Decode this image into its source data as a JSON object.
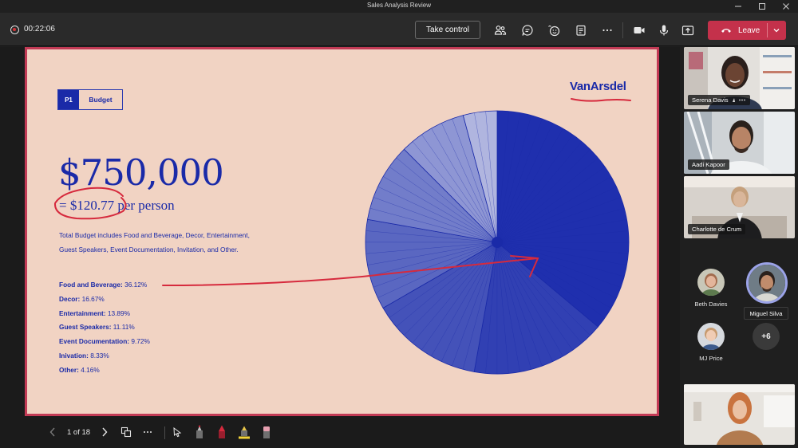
{
  "window": {
    "title": "Sales Analysis Review",
    "controls": [
      "minimize",
      "maximize",
      "close"
    ]
  },
  "toolbar": {
    "timer": "00:22:06",
    "take_control_label": "Take control",
    "icons": [
      "people-icon",
      "chat-icon",
      "reactions-icon",
      "notes-icon",
      "more-icon",
      "camera-icon",
      "mic-icon",
      "share-icon"
    ],
    "leave_label": "Leave",
    "colors": {
      "leave": "#c4314b",
      "record": "#d13438"
    }
  },
  "slide": {
    "chip_number": "P1",
    "chip_label": "Budget",
    "logo": "VanArsdel",
    "amount": "$750,000",
    "per_person": "= $120.77 per person",
    "description_line1": "Total Budget includes Food and Beverage, Decor, Entertainment,",
    "description_line2": "Guest Speakers, Event Documentation, Invitation, and Other.",
    "breakdown": [
      {
        "label": "Food and Beverage:",
        "value": "36.12%"
      },
      {
        "label": "Decor:",
        "value": "16.67%"
      },
      {
        "label": "Entertainment:",
        "value": "13.89%"
      },
      {
        "label": "Guest Speakers:",
        "value": "11.11%"
      },
      {
        "label": "Event Documentation:",
        "value": "9.72%"
      },
      {
        "label": "Inivation:",
        "value": "8.33%"
      },
      {
        "label": "Other:",
        "value": "4.16%"
      }
    ],
    "colors": {
      "background": "#f1d3c3",
      "ink_blue": "#1a2aa8",
      "border": "#c23a55",
      "pen_red": "#d62a3d"
    }
  },
  "chart_data": {
    "type": "pie",
    "categories": [
      "Food and Beverage",
      "Decor",
      "Entertainment",
      "Guest Speakers",
      "Event Documentation",
      "Inivation",
      "Other"
    ],
    "values": [
      36.12,
      16.67,
      13.89,
      11.11,
      9.72,
      8.33,
      4.16
    ],
    "colors": [
      "#1f2fae",
      "#3140b3",
      "#4452b9",
      "#5a67c1",
      "#727dca",
      "#8e96d4",
      "#b0b5df"
    ]
  },
  "slide_nav": {
    "page_indicator": "1 of 18"
  },
  "participants": {
    "tiles": [
      {
        "name": "Serena Davis"
      },
      {
        "name": "Aadi Kapoor"
      },
      {
        "name": "Charlotte de Crum"
      }
    ],
    "avatars": [
      {
        "name": "Beth Davies"
      },
      {
        "name": "Miguel Silva"
      },
      {
        "name": "MJ Price"
      }
    ],
    "overflow_count": "+6"
  }
}
